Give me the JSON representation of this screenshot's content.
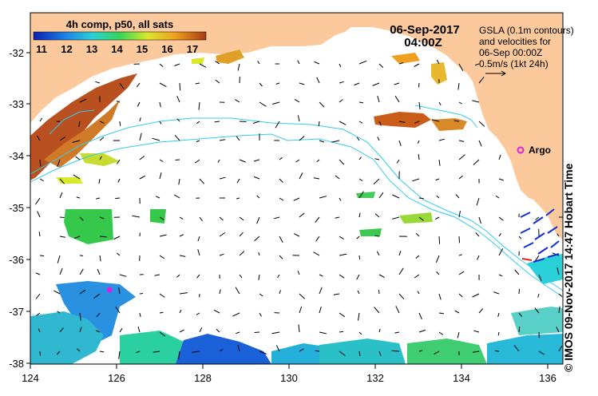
{
  "header": {
    "colorbar_title": "4h comp, p50, all sats",
    "date": "06-Sep-2017",
    "time": "04:00Z"
  },
  "legend": {
    "lines": [
      "GSLA (0.1m contours)",
      "and velocities for",
      "06-Sep 00:00Z",
      "0.5m/s (1kt 24h)"
    ]
  },
  "colorbar": {
    "ticks": [
      "11",
      "12",
      "13",
      "14",
      "15",
      "16",
      "17"
    ],
    "colors": [
      "#0a1fb0",
      "#1a7fe6",
      "#2ad0d8",
      "#36d65a",
      "#d8e82a",
      "#f0a020",
      "#a83a10"
    ]
  },
  "axes": {
    "x_ticks": [
      "124",
      "126",
      "128",
      "130",
      "132",
      "134",
      "136"
    ],
    "y_ticks": [
      "-32",
      "-33",
      "-34",
      "-35",
      "-36",
      "-37",
      "-38"
    ]
  },
  "marker": {
    "label": "Argo",
    "color": "#e020e0"
  },
  "credit": "© IMOS 09-Nov-2017 14:47 Hobart Time",
  "colors": {
    "land": "#fbc99b",
    "ocean": "#ffffff",
    "contour": "#33ccee"
  }
}
